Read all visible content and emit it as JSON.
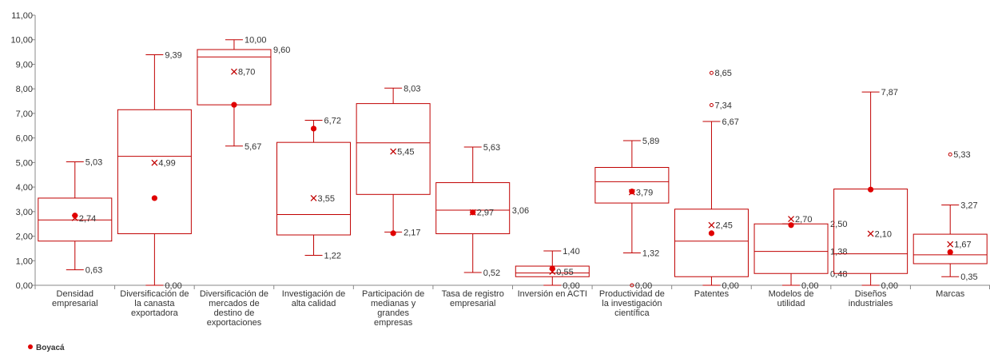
{
  "chart_data": {
    "type": "boxplot",
    "ylim": [
      0,
      11
    ],
    "yticks": [
      "0,00",
      "1,00",
      "2,00",
      "3,00",
      "4,00",
      "5,00",
      "6,00",
      "7,00",
      "8,00",
      "9,00",
      "10,00",
      "11,00"
    ],
    "grid": false,
    "legend": {
      "position": "bottom-left",
      "label": "Boyacá"
    },
    "colors": {
      "box": "#c00000",
      "boyaca": "#e00000",
      "axis": "#888888"
    },
    "categories": [
      {
        "name": [
          "Densidad",
          "empresarial"
        ],
        "min": 0.63,
        "q1": 1.8,
        "median": 2.66,
        "q3": 3.55,
        "max": 5.03,
        "mean": 2.74,
        "boyaca": 2.84,
        "outliers": [],
        "labels": [
          {
            "text": "5,03",
            "v": 5.03,
            "at": "whisker"
          },
          {
            "text": "2,74",
            "v": 2.74,
            "at": "mean"
          },
          {
            "text": "0,63",
            "v": 0.63,
            "at": "whisker"
          }
        ]
      },
      {
        "name": [
          "Diversificación de",
          "la canasta",
          "exportadora"
        ],
        "min": 0.0,
        "q1": 2.1,
        "median": 5.25,
        "q3": 7.15,
        "max": 9.39,
        "mean": 4.99,
        "boyaca": 3.55,
        "outliers": [],
        "labels": [
          {
            "text": "9,39",
            "v": 9.39,
            "at": "whisker"
          },
          {
            "text": "4,99",
            "v": 4.99,
            "at": "mean"
          },
          {
            "text": "0,00",
            "v": 0.0,
            "at": "whisker"
          }
        ]
      },
      {
        "name": [
          "Diversificación de",
          "mercados de",
          "destino de",
          "exportaciones"
        ],
        "min": 5.67,
        "q1": 7.35,
        "median": 9.3,
        "q3": 9.6,
        "max": 10.0,
        "mean": 8.7,
        "boyaca": 7.35,
        "outliers": [],
        "labels": [
          {
            "text": "10,00",
            "v": 10.0,
            "at": "whisker"
          },
          {
            "text": "9,60",
            "v": 9.6,
            "at": "box"
          },
          {
            "text": "8,70",
            "v": 8.7,
            "at": "mean"
          },
          {
            "text": "5,67",
            "v": 5.67,
            "at": "whisker"
          }
        ]
      },
      {
        "name": [
          "Investigación de",
          "alta calidad"
        ],
        "min": 1.22,
        "q1": 2.05,
        "median": 2.88,
        "q3": 5.82,
        "max": 6.72,
        "mean": 3.55,
        "boyaca": 6.38,
        "outliers": [],
        "labels": [
          {
            "text": "6,72",
            "v": 6.72,
            "at": "whisker"
          },
          {
            "text": "3,55",
            "v": 3.55,
            "at": "mean"
          },
          {
            "text": "1,22",
            "v": 1.22,
            "at": "whisker"
          }
        ]
      },
      {
        "name": [
          "Participación de",
          "medianas y",
          "grandes",
          "empresas"
        ],
        "min": 2.17,
        "q1": 3.7,
        "median": 5.8,
        "q3": 7.4,
        "max": 8.03,
        "mean": 5.45,
        "boyaca": 2.12,
        "outliers": [],
        "labels": [
          {
            "text": "8,03",
            "v": 8.03,
            "at": "whisker"
          },
          {
            "text": "5,45",
            "v": 5.45,
            "at": "mean"
          },
          {
            "text": "2,17",
            "v": 2.17,
            "at": "whisker"
          }
        ]
      },
      {
        "name": [
          "Tasa de registro",
          "empresarial"
        ],
        "min": 0.52,
        "q1": 2.1,
        "median": 3.06,
        "q3": 4.18,
        "max": 5.63,
        "mean": 2.97,
        "boyaca": 2.97,
        "outliers": [],
        "labels": [
          {
            "text": "5,63",
            "v": 5.63,
            "at": "whisker"
          },
          {
            "text": "2,97",
            "v": 2.97,
            "at": "mean"
          },
          {
            "text": "3,06",
            "v": 3.06,
            "at": "box"
          },
          {
            "text": "0,52",
            "v": 0.52,
            "at": "whisker"
          }
        ]
      },
      {
        "name": [
          "Inversión en ACTI"
        ],
        "min": 0.0,
        "q1": 0.35,
        "median": 0.5,
        "q3": 0.78,
        "max": 1.4,
        "mean": 0.55,
        "boyaca": 0.68,
        "outliers": [],
        "labels": [
          {
            "text": "1,40",
            "v": 1.4,
            "at": "whisker"
          },
          {
            "text": "0,55",
            "v": 0.55,
            "at": "mean"
          },
          {
            "text": "0,00",
            "v": 0.0,
            "at": "whisker"
          }
        ]
      },
      {
        "name": [
          "Productividad de",
          "la investigación",
          "científica"
        ],
        "min": 1.32,
        "q1": 3.35,
        "median": 4.22,
        "q3": 4.8,
        "max": 5.89,
        "mean": 3.79,
        "boyaca": 3.82,
        "outliers": [
          0.0
        ],
        "labels": [
          {
            "text": "5,89",
            "v": 5.89,
            "at": "whisker"
          },
          {
            "text": "3,79",
            "v": 3.79,
            "at": "mean"
          },
          {
            "text": "1,32",
            "v": 1.32,
            "at": "whisker"
          },
          {
            "text": "0,00",
            "v": 0.0,
            "at": "outlier"
          }
        ]
      },
      {
        "name": [
          "Patentes"
        ],
        "min": 0.0,
        "q1": 0.35,
        "median": 1.8,
        "q3": 3.1,
        "max": 6.67,
        "mean": 2.45,
        "boyaca": 2.12,
        "outliers": [
          8.65,
          7.34
        ],
        "labels": [
          {
            "text": "8,65",
            "v": 8.65,
            "at": "outlier"
          },
          {
            "text": "7,34",
            "v": 7.34,
            "at": "outlier"
          },
          {
            "text": "6,67",
            "v": 6.67,
            "at": "whisker"
          },
          {
            "text": "2,45",
            "v": 2.45,
            "at": "mean"
          },
          {
            "text": "0,00",
            "v": 0.0,
            "at": "whisker"
          }
        ]
      },
      {
        "name": [
          "Modelos de",
          "utilidad"
        ],
        "min": 0.0,
        "q1": 0.48,
        "median": 1.38,
        "q3": 2.5,
        "max": 2.5,
        "mean": 2.7,
        "boyaca": 2.45,
        "outliers": [],
        "labels": [
          {
            "text": "2,70",
            "v": 2.7,
            "at": "mean"
          },
          {
            "text": "2,50",
            "v": 2.5,
            "at": "box"
          },
          {
            "text": "1,38",
            "v": 1.38,
            "at": "box"
          },
          {
            "text": "0,48",
            "v": 0.48,
            "at": "box"
          },
          {
            "text": "0,00",
            "v": 0.0,
            "at": "whisker"
          }
        ]
      },
      {
        "name": [
          "Diseños",
          "industriales"
        ],
        "min": 0.0,
        "q1": 0.48,
        "median": 1.28,
        "q3": 3.92,
        "max": 7.87,
        "mean": 2.1,
        "boyaca": 3.9,
        "outliers": [],
        "labels": [
          {
            "text": "7,87",
            "v": 7.87,
            "at": "whisker"
          },
          {
            "text": "2,10",
            "v": 2.1,
            "at": "mean"
          },
          {
            "text": "0,00",
            "v": 0.0,
            "at": "whisker"
          }
        ]
      },
      {
        "name": [
          "Marcas"
        ],
        "min": 0.35,
        "q1": 0.88,
        "median": 1.24,
        "q3": 2.08,
        "max": 3.27,
        "mean": 1.67,
        "boyaca": 1.35,
        "outliers": [
          5.33
        ],
        "labels": [
          {
            "text": "5,33",
            "v": 5.33,
            "at": "outlier"
          },
          {
            "text": "3,27",
            "v": 3.27,
            "at": "whisker"
          },
          {
            "text": "1,67",
            "v": 1.67,
            "at": "mean"
          },
          {
            "text": "0,35",
            "v": 0.35,
            "at": "whisker"
          }
        ]
      }
    ]
  }
}
